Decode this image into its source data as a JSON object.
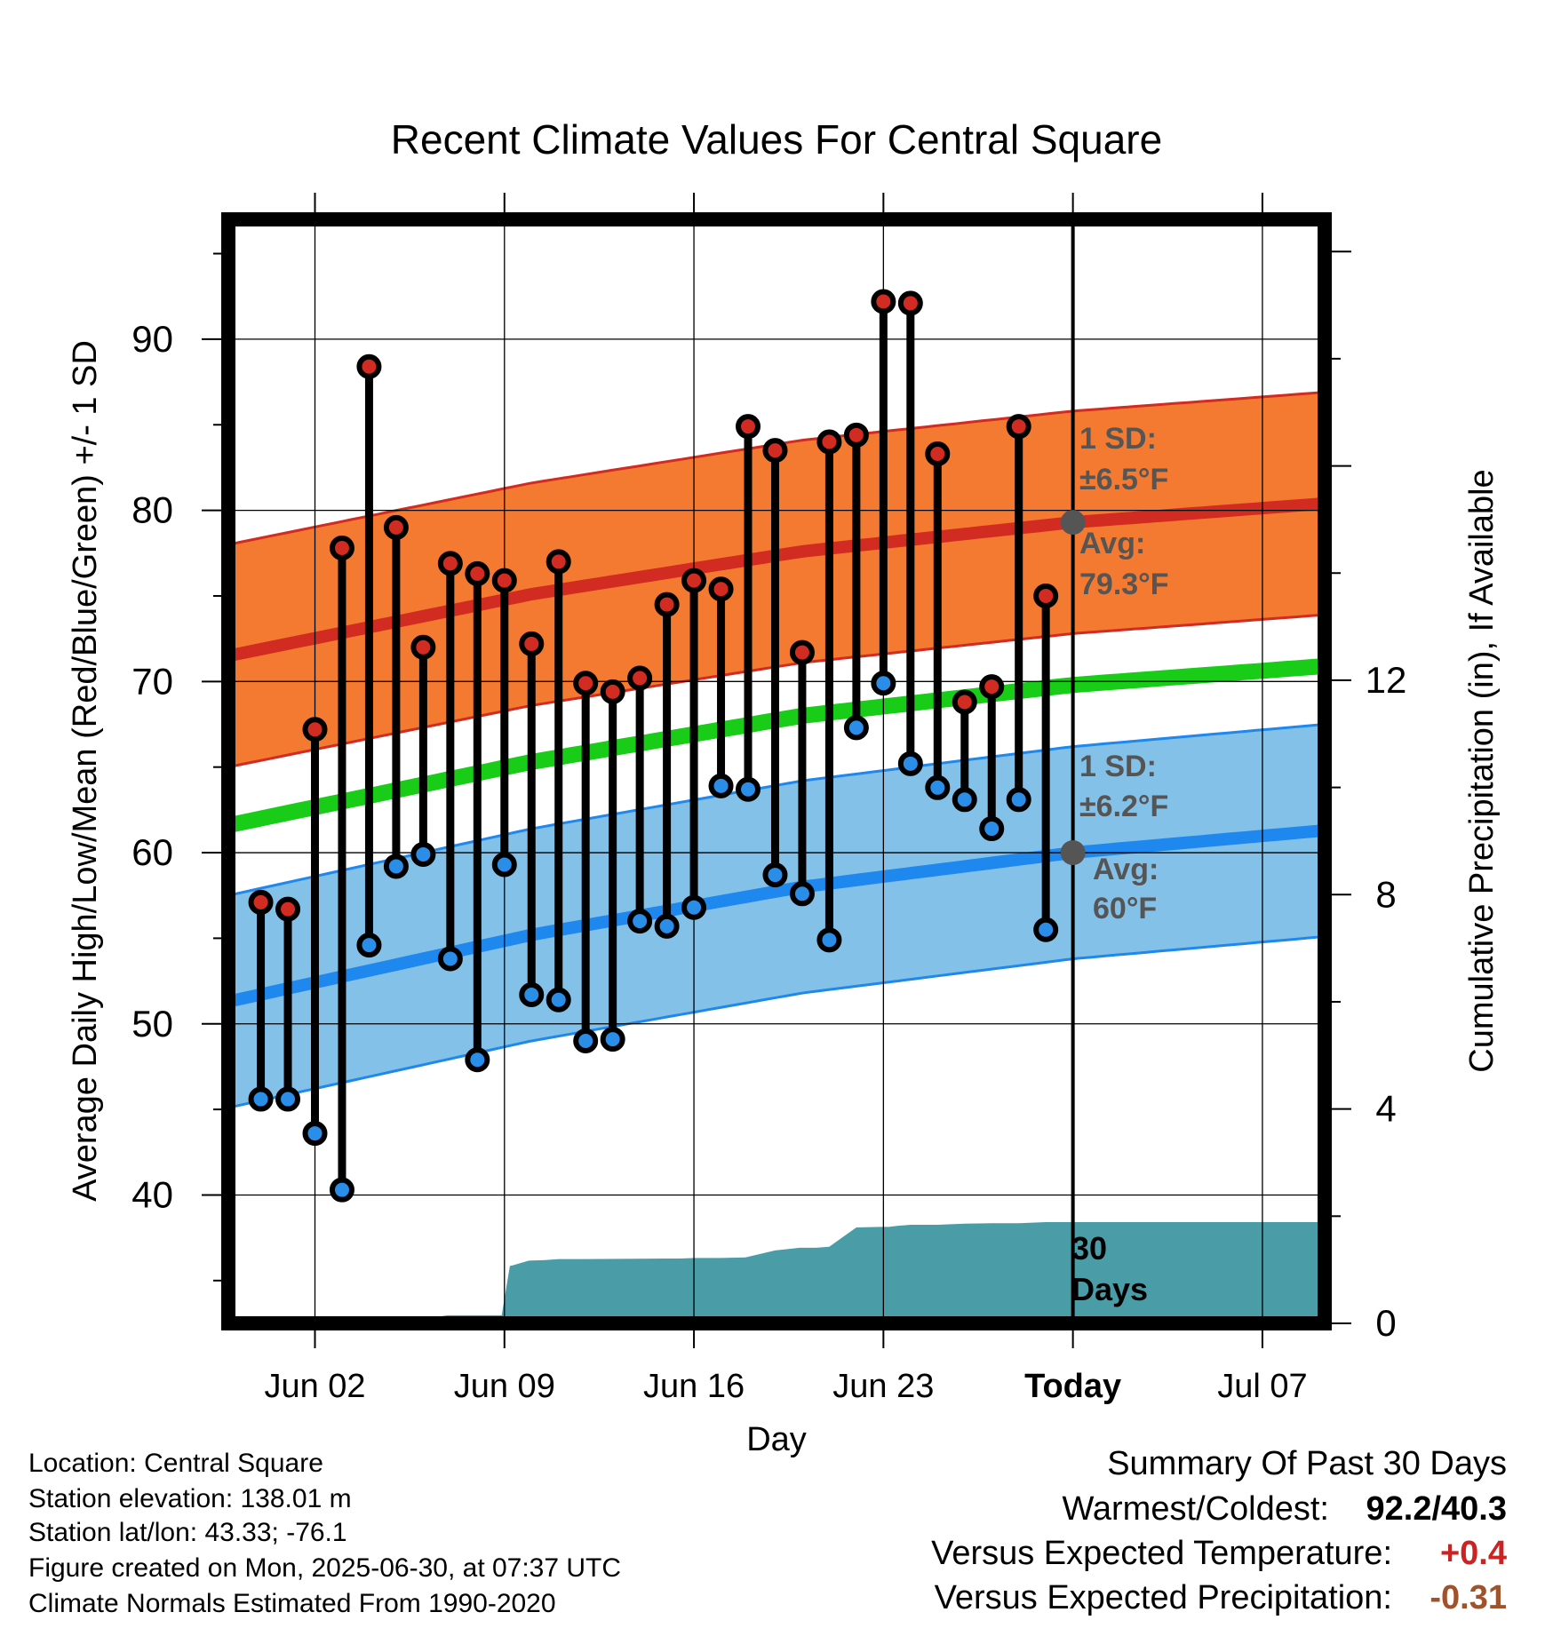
{
  "chart_data": {
    "type": "line",
    "title": "Recent Climate Values For Central Square",
    "xlabel": "Day",
    "ylabel_left": "Average Daily High/Low/Mean (Red/Blue/Green) +/- 1 SD",
    "ylabel_right": "Cumulative Precipitation (in), If Available",
    "x_ticks": [
      "Jun 02",
      "Jun 09",
      "Jun 16",
      "Jun 23",
      "Today",
      "Jul 07"
    ],
    "x_tick_days": [
      2,
      9,
      16,
      23,
      30,
      37
    ],
    "xlim_days": [
      -1.2,
      39.3
    ],
    "y_left_ticks": [
      40,
      50,
      60,
      70,
      80,
      90
    ],
    "ylim_left": [
      32.5,
      97
    ],
    "y_right_ticks": [
      0,
      4,
      8,
      12
    ],
    "ylim_right": [
      0,
      20.6
    ],
    "grid": true,
    "today_day": 30,
    "today_label_line1": "30",
    "today_label_line2": "Days",
    "colors": {
      "high_band": "#f37a30",
      "high_band_edge": "#d22b22",
      "high_mean": "#d22b22",
      "low_band": "#84c1e8",
      "low_band_edge": "#1e88ee",
      "low_mean": "#1e88ee",
      "mean": "#18cc18",
      "precip": "#4a9ca6",
      "high_marker": "#d22b22",
      "low_marker": "#2a8de8",
      "annotation": "#555555",
      "temp_anomaly": "#cc2222",
      "precip_anomaly": "#a0522d"
    },
    "normals": {
      "days": [
        -1.2,
        10,
        20,
        30,
        39.3
      ],
      "high_mean": [
        71.5,
        75.1,
        77.6,
        79.3,
        80.4
      ],
      "high_sd": 6.5,
      "low_mean": [
        51.3,
        55.2,
        58.0,
        60.0,
        61.3
      ],
      "low_sd": 6.2,
      "mean_line": [
        61.6,
        65.3,
        68.0,
        69.8,
        70.9
      ]
    },
    "series": [
      {
        "name": "High",
        "x": [
          0,
          1,
          2,
          3,
          4,
          5,
          6,
          7,
          8,
          9,
          10,
          11,
          12,
          13,
          14,
          15,
          16,
          17,
          18,
          19,
          20,
          21,
          22,
          23,
          24,
          25,
          26,
          27,
          28,
          29
        ],
        "values": [
          57.1,
          56.7,
          67.2,
          77.8,
          88.4,
          79.0,
          72.0,
          76.9,
          76.3,
          75.9,
          72.2,
          77.0,
          69.9,
          69.4,
          70.2,
          74.5,
          75.9,
          75.4,
          84.9,
          83.5,
          71.7,
          84.0,
          84.4,
          92.2,
          92.1,
          83.3,
          68.8,
          69.7,
          84.9,
          75.0
        ]
      },
      {
        "name": "Low",
        "x": [
          0,
          1,
          2,
          3,
          4,
          5,
          6,
          7,
          8,
          9,
          10,
          11,
          12,
          13,
          14,
          15,
          16,
          17,
          18,
          19,
          20,
          21,
          22,
          23,
          24,
          25,
          26,
          27,
          28,
          29
        ],
        "values": [
          45.6,
          45.6,
          43.6,
          40.3,
          54.6,
          59.2,
          59.9,
          53.8,
          47.9,
          59.3,
          51.7,
          51.4,
          49.0,
          49.1,
          56.0,
          55.7,
          56.8,
          63.9,
          63.7,
          58.7,
          57.6,
          54.9,
          67.3,
          69.9,
          65.2,
          63.8,
          63.1,
          61.4,
          63.1,
          55.5
        ]
      },
      {
        "name": "Cumulative Precipitation",
        "x": [
          -1.2,
          2.0,
          2.9,
          3.0,
          5.0,
          6.0,
          6.5,
          6.9,
          7.0,
          8.0,
          8.1,
          8.9,
          9.2,
          9.3,
          9.9,
          10.5,
          11.0,
          12.0,
          15.0,
          15.5,
          16.0,
          17.0,
          17.9,
          19.0,
          19.9,
          20.5,
          21.0,
          22.0,
          22.9,
          23.2,
          23.5,
          24.0,
          25.0,
          26.0,
          27.0,
          28.0,
          29.0,
          30.0,
          39.3
        ],
        "values": [
          0,
          0,
          0,
          0,
          0,
          0,
          0.12,
          0.15,
          0.15,
          0.15,
          0.15,
          0.15,
          1.07,
          1.08,
          1.17,
          1.18,
          1.2,
          1.2,
          1.21,
          1.21,
          1.22,
          1.22,
          1.23,
          1.36,
          1.41,
          1.41,
          1.43,
          1.79,
          1.8,
          1.8,
          1.82,
          1.84,
          1.84,
          1.86,
          1.87,
          1.87,
          1.89,
          1.89,
          1.89
        ]
      }
    ],
    "annotations": {
      "high_sd_label": "1 SD:",
      "high_sd_value": "±6.5°F",
      "high_avg_label": "Avg:",
      "high_avg_value": "79.3°F",
      "low_sd_label": "1 SD:",
      "low_sd_value": "±6.2°F",
      "low_avg_label": "Avg:",
      "low_avg_value": "60°F",
      "high_today_avg": 79.3,
      "low_today_avg": 60.0
    }
  },
  "station_info": {
    "location": "Location: Central Square",
    "elevation": "Station elevation: 138.01 m",
    "latlon": "Station lat/lon: 43.33; -76.1",
    "created": "Figure created on Mon, 2025-06-30, at 07:37 UTC",
    "normals": "Climate Normals Estimated From 1990-2020"
  },
  "summary": {
    "title": "Summary Of Past 30 Days",
    "warmest_label": "Warmest/Coldest:",
    "warmest_value": "92.2/40.3",
    "temp_label": "Versus Expected Temperature:",
    "temp_value": "+0.4",
    "precip_label": "Versus Expected Precipitation:",
    "precip_value": "-0.31"
  }
}
